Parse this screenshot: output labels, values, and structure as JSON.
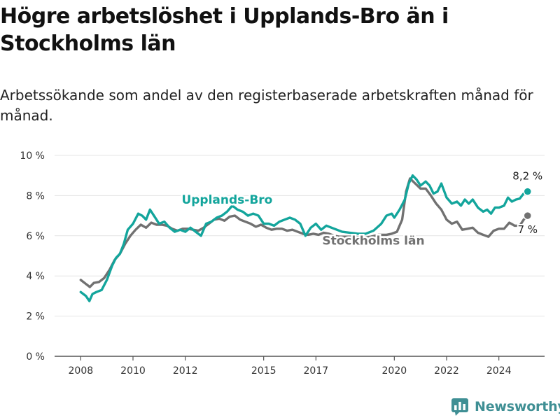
{
  "title": "Högre arbetslöshet i Upplands-Bro än i Stockholms län",
  "subtitle": "Arbetssökande som andel av den registerbaserade arbetskraften månad för månad.",
  "logo": {
    "text": "Newsworthy",
    "icon": "bar-chart-icon"
  },
  "colors": {
    "upplands_bro": "#13a59c",
    "stockholms_lan": "#717171",
    "grid": "#e4e4e4",
    "axis": "#555555",
    "logo": "#3f8f94"
  },
  "chart_data": {
    "type": "line",
    "title": "Högre arbetslöshet i Upplands-Bro än i Stockholms län",
    "xlabel": "",
    "ylabel": "",
    "ylim": [
      0,
      10
    ],
    "y_ticks": [
      0,
      2,
      4,
      6,
      8,
      10
    ],
    "y_tick_labels": [
      "0 %",
      "2 %",
      "4 %",
      "6 %",
      "8 %",
      "10 %"
    ],
    "x_range": [
      2007.0,
      2025.75
    ],
    "x_ticks": [
      2008,
      2010,
      2012,
      2015,
      2017,
      2020,
      2022,
      2024
    ],
    "x_tick_labels": [
      "2008",
      "2010",
      "2012",
      "2015",
      "2017",
      "2020",
      "2022",
      "2024"
    ],
    "grid": true,
    "series": [
      {
        "name": "Upplands-Bro",
        "color": "#13a59c",
        "end_label": "8,2 %",
        "points": [
          [
            2008.0,
            3.2
          ],
          [
            2008.2,
            3.0
          ],
          [
            2008.33,
            2.75
          ],
          [
            2008.45,
            3.1
          ],
          [
            2008.6,
            3.2
          ],
          [
            2008.8,
            3.3
          ],
          [
            2009.0,
            3.8
          ],
          [
            2009.2,
            4.5
          ],
          [
            2009.35,
            4.9
          ],
          [
            2009.5,
            5.1
          ],
          [
            2009.65,
            5.6
          ],
          [
            2009.8,
            6.3
          ],
          [
            2010.0,
            6.6
          ],
          [
            2010.2,
            7.1
          ],
          [
            2010.35,
            7.0
          ],
          [
            2010.5,
            6.8
          ],
          [
            2010.65,
            7.3
          ],
          [
            2010.8,
            7.0
          ],
          [
            2011.0,
            6.6
          ],
          [
            2011.2,
            6.7
          ],
          [
            2011.4,
            6.4
          ],
          [
            2011.6,
            6.2
          ],
          [
            2011.8,
            6.3
          ],
          [
            2012.0,
            6.2
          ],
          [
            2012.2,
            6.4
          ],
          [
            2012.4,
            6.2
          ],
          [
            2012.6,
            6.0
          ],
          [
            2012.8,
            6.6
          ],
          [
            2013.0,
            6.7
          ],
          [
            2013.2,
            6.9
          ],
          [
            2013.4,
            7.0
          ],
          [
            2013.6,
            7.2
          ],
          [
            2013.8,
            7.5
          ],
          [
            2014.0,
            7.3
          ],
          [
            2014.2,
            7.2
          ],
          [
            2014.4,
            7.0
          ],
          [
            2014.6,
            7.1
          ],
          [
            2014.8,
            7.0
          ],
          [
            2015.0,
            6.6
          ],
          [
            2015.2,
            6.6
          ],
          [
            2015.4,
            6.5
          ],
          [
            2015.6,
            6.7
          ],
          [
            2015.8,
            6.8
          ],
          [
            2016.0,
            6.9
          ],
          [
            2016.2,
            6.8
          ],
          [
            2016.4,
            6.6
          ],
          [
            2016.6,
            6.0
          ],
          [
            2016.8,
            6.4
          ],
          [
            2017.0,
            6.6
          ],
          [
            2017.2,
            6.3
          ],
          [
            2017.4,
            6.5
          ],
          [
            2017.6,
            6.4
          ],
          [
            2017.8,
            6.3
          ],
          [
            2018.0,
            6.2
          ],
          [
            2018.3,
            6.15
          ],
          [
            2018.6,
            6.1
          ],
          [
            2018.9,
            6.1
          ],
          [
            2019.2,
            6.25
          ],
          [
            2019.5,
            6.6
          ],
          [
            2019.7,
            7.0
          ],
          [
            2019.9,
            7.1
          ],
          [
            2020.0,
            6.9
          ],
          [
            2020.2,
            7.3
          ],
          [
            2020.4,
            7.8
          ],
          [
            2020.55,
            8.6
          ],
          [
            2020.7,
            9.0
          ],
          [
            2020.85,
            8.8
          ],
          [
            2021.0,
            8.5
          ],
          [
            2021.2,
            8.7
          ],
          [
            2021.35,
            8.5
          ],
          [
            2021.5,
            8.1
          ],
          [
            2021.65,
            8.2
          ],
          [
            2021.8,
            8.6
          ],
          [
            2022.0,
            7.9
          ],
          [
            2022.2,
            7.6
          ],
          [
            2022.4,
            7.7
          ],
          [
            2022.55,
            7.5
          ],
          [
            2022.7,
            7.8
          ],
          [
            2022.85,
            7.6
          ],
          [
            2023.0,
            7.8
          ],
          [
            2023.2,
            7.4
          ],
          [
            2023.4,
            7.2
          ],
          [
            2023.55,
            7.3
          ],
          [
            2023.7,
            7.1
          ],
          [
            2023.85,
            7.4
          ],
          [
            2024.0,
            7.4
          ],
          [
            2024.2,
            7.5
          ],
          [
            2024.35,
            7.9
          ],
          [
            2024.5,
            7.7
          ],
          [
            2024.65,
            7.8
          ],
          [
            2024.8,
            7.85
          ],
          [
            2024.95,
            8.1
          ],
          [
            2025.1,
            8.2
          ]
        ]
      },
      {
        "name": "Stockholms län",
        "color": "#717171",
        "end_label": "7 %",
        "points": [
          [
            2008.0,
            3.8
          ],
          [
            2008.2,
            3.6
          ],
          [
            2008.35,
            3.45
          ],
          [
            2008.5,
            3.65
          ],
          [
            2008.7,
            3.7
          ],
          [
            2008.9,
            3.9
          ],
          [
            2009.1,
            4.3
          ],
          [
            2009.3,
            4.8
          ],
          [
            2009.5,
            5.1
          ],
          [
            2009.7,
            5.6
          ],
          [
            2009.9,
            6.0
          ],
          [
            2010.1,
            6.3
          ],
          [
            2010.3,
            6.55
          ],
          [
            2010.5,
            6.4
          ],
          [
            2010.7,
            6.65
          ],
          [
            2010.9,
            6.55
          ],
          [
            2011.1,
            6.55
          ],
          [
            2011.3,
            6.5
          ],
          [
            2011.5,
            6.35
          ],
          [
            2011.7,
            6.25
          ],
          [
            2011.9,
            6.35
          ],
          [
            2012.1,
            6.35
          ],
          [
            2012.3,
            6.3
          ],
          [
            2012.5,
            6.25
          ],
          [
            2012.7,
            6.4
          ],
          [
            2012.9,
            6.6
          ],
          [
            2013.1,
            6.8
          ],
          [
            2013.3,
            6.85
          ],
          [
            2013.5,
            6.75
          ],
          [
            2013.7,
            6.95
          ],
          [
            2013.9,
            7.0
          ],
          [
            2014.1,
            6.8
          ],
          [
            2014.3,
            6.7
          ],
          [
            2014.5,
            6.6
          ],
          [
            2014.7,
            6.45
          ],
          [
            2014.9,
            6.55
          ],
          [
            2015.1,
            6.4
          ],
          [
            2015.3,
            6.3
          ],
          [
            2015.5,
            6.35
          ],
          [
            2015.7,
            6.35
          ],
          [
            2015.9,
            6.25
          ],
          [
            2016.1,
            6.3
          ],
          [
            2016.3,
            6.2
          ],
          [
            2016.5,
            6.1
          ],
          [
            2016.7,
            6.05
          ],
          [
            2016.9,
            6.1
          ],
          [
            2017.1,
            6.05
          ],
          [
            2017.3,
            6.15
          ],
          [
            2017.5,
            6.1
          ],
          [
            2017.7,
            6.0
          ],
          [
            2017.9,
            5.95
          ],
          [
            2018.2,
            5.95
          ],
          [
            2018.5,
            5.95
          ],
          [
            2018.8,
            5.9
          ],
          [
            2019.1,
            5.95
          ],
          [
            2019.4,
            6.05
          ],
          [
            2019.7,
            6.05
          ],
          [
            2019.9,
            6.1
          ],
          [
            2020.1,
            6.2
          ],
          [
            2020.3,
            6.8
          ],
          [
            2020.45,
            8.2
          ],
          [
            2020.6,
            8.85
          ],
          [
            2020.8,
            8.6
          ],
          [
            2021.0,
            8.35
          ],
          [
            2021.2,
            8.35
          ],
          [
            2021.4,
            8.0
          ],
          [
            2021.6,
            7.6
          ],
          [
            2021.8,
            7.3
          ],
          [
            2022.0,
            6.8
          ],
          [
            2022.2,
            6.6
          ],
          [
            2022.4,
            6.7
          ],
          [
            2022.6,
            6.3
          ],
          [
            2022.8,
            6.35
          ],
          [
            2023.0,
            6.4
          ],
          [
            2023.2,
            6.15
          ],
          [
            2023.4,
            6.05
          ],
          [
            2023.6,
            5.95
          ],
          [
            2023.8,
            6.25
          ],
          [
            2024.0,
            6.35
          ],
          [
            2024.2,
            6.35
          ],
          [
            2024.4,
            6.65
          ],
          [
            2024.6,
            6.5
          ],
          [
            2024.8,
            6.5
          ],
          [
            2024.95,
            6.8
          ],
          [
            2025.1,
            7.0
          ]
        ]
      }
    ],
    "annotations": [
      {
        "text": "Upplands-Bro",
        "series": "Upplands-Bro",
        "x": 2013.6,
        "y": 7.6
      },
      {
        "text": "Stockholms län",
        "series": "Stockholms län",
        "x": 2019.2,
        "y": 5.55
      }
    ]
  }
}
